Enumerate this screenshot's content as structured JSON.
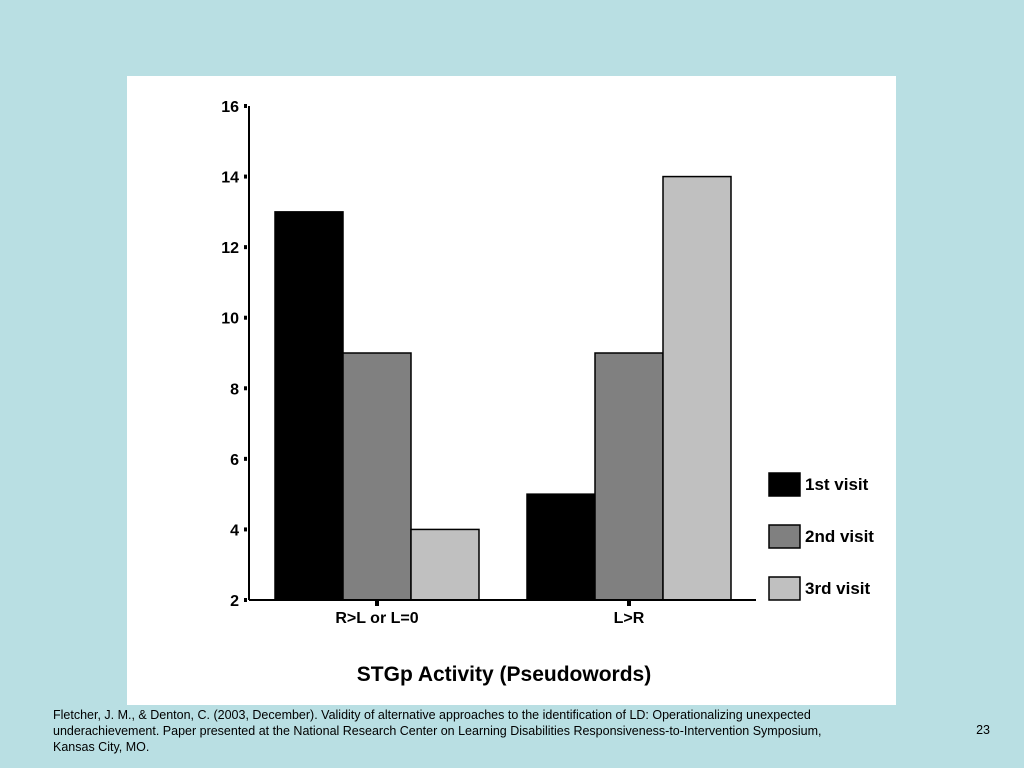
{
  "colors": {
    "background": "#b9dfe3",
    "panel": "#ffffff"
  },
  "chart_data": {
    "type": "bar",
    "title": "STGp Activity (Pseudowords)",
    "xlabel": "",
    "ylabel": "",
    "categories": [
      "R>L or L=0",
      "L>R"
    ],
    "series": [
      {
        "name": "1st visit",
        "values": [
          13,
          5
        ],
        "color": "#000000"
      },
      {
        "name": "2nd visit",
        "values": [
          9,
          9
        ],
        "color": "#808080"
      },
      {
        "name": "3rd visit",
        "values": [
          4,
          14
        ],
        "color": "#c0c0c0"
      }
    ],
    "ylim": [
      2,
      16
    ],
    "yticks": [
      2,
      4,
      6,
      8,
      10,
      12,
      14,
      16
    ],
    "grid": false,
    "legend_position": "right"
  },
  "footer": {
    "citation": "Fletcher, J. M., & Denton, C.  (2003, December). Validity of alternative approaches to the identification of LD: Operationalizing unexpected underachievement. Paper presented at the National Research Center on Learning Disabilities Responsiveness-to-Intervention Symposium, Kansas City, MO.",
    "slide_number": "23"
  }
}
